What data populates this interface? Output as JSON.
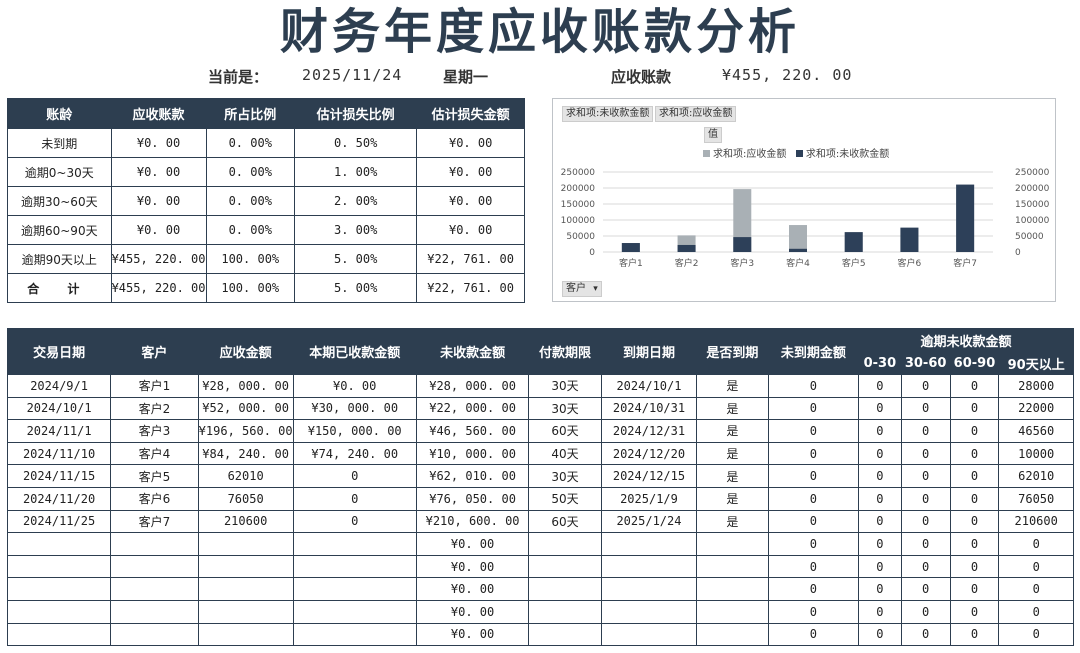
{
  "header": {
    "title": "财务年度应收账款分析",
    "current_label": "当前是：",
    "date": "2025/11/24",
    "weekday": "星期一",
    "ar_label": "应收账款",
    "ar_total": "¥455, 220. 00"
  },
  "aging_table": {
    "headers": [
      "账龄",
      "应收账款",
      "所占比例",
      "估计损失比例",
      "估计损失金额"
    ],
    "rows": [
      [
        "未到期",
        "¥0. 00",
        "0. 00%",
        "0. 50%",
        "¥0. 00"
      ],
      [
        "逾期0~30天",
        "¥0. 00",
        "0. 00%",
        "1. 00%",
        "¥0. 00"
      ],
      [
        "逾期30~60天",
        "¥0. 00",
        "0. 00%",
        "2. 00%",
        "¥0. 00"
      ],
      [
        "逾期60~90天",
        "¥0. 00",
        "0. 00%",
        "3. 00%",
        "¥0. 00"
      ],
      [
        "逾期90天以上",
        "¥455, 220. 00",
        "100. 00%",
        "5. 00%",
        "¥22, 761. 00"
      ],
      [
        "合 计",
        "¥455, 220. 00",
        "100. 00%",
        "5. 00%",
        "¥22, 761. 00"
      ]
    ]
  },
  "pivot_chart": {
    "field_buttons": [
      "求和项:未收款金额",
      "求和项:应收金额"
    ],
    "values_button": "值",
    "category_button": "客户",
    "legend": [
      "求和项:应收金额",
      "求和项:未收款金额"
    ],
    "colors": {
      "receivable": "#a9b0b5",
      "unpaid": "#2d4059",
      "grid": "#d9d9d9"
    },
    "y_ticks_left": [
      "250000",
      "200000",
      "150000",
      "100000",
      "50000",
      "0"
    ],
    "y_ticks_right": [
      "250000",
      "200000",
      "150000",
      "100000",
      "50000",
      "0"
    ]
  },
  "chart_data": {
    "type": "bar",
    "categories": [
      "客户1",
      "客户2",
      "客户3",
      "客户4",
      "客户5",
      "客户6",
      "客户7"
    ],
    "series": [
      {
        "name": "求和项:应收金额",
        "values": [
          28000,
          52000,
          196560,
          84240,
          62010,
          76050,
          210600
        ]
      },
      {
        "name": "求和项:未收款金额",
        "values": [
          28000,
          22000,
          46560,
          10000,
          62010,
          76050,
          210600
        ]
      }
    ],
    "ylim": [
      0,
      250000
    ],
    "y2lim": [
      0,
      250000
    ],
    "legend_position": "top",
    "grid": true
  },
  "detail_table": {
    "headers": [
      "交易日期",
      "客户",
      "应收金额",
      "本期已收款金额",
      "未收款金额",
      "付款期限",
      "到期日期",
      "是否到期",
      "未到期金额"
    ],
    "overdue_group": "逾期未收款金额",
    "overdue_headers": [
      "0-30",
      "30-60",
      "60-90",
      "90天以上"
    ],
    "rows": [
      [
        "2024/9/1",
        "客户1",
        "¥28, 000. 00",
        "¥0. 00",
        "¥28, 000. 00",
        "30天",
        "2024/10/1",
        "是",
        "0",
        "0",
        "0",
        "0",
        "28000"
      ],
      [
        "2024/10/1",
        "客户2",
        "¥52, 000. 00",
        "¥30, 000. 00",
        "¥22, 000. 00",
        "30天",
        "2024/10/31",
        "是",
        "0",
        "0",
        "0",
        "0",
        "22000"
      ],
      [
        "2024/11/1",
        "客户3",
        "¥196, 560. 00",
        "¥150, 000. 00",
        "¥46, 560. 00",
        "60天",
        "2024/12/31",
        "是",
        "0",
        "0",
        "0",
        "0",
        "46560"
      ],
      [
        "2024/11/10",
        "客户4",
        "¥84, 240. 00",
        "¥74, 240. 00",
        "¥10, 000. 00",
        "40天",
        "2024/12/20",
        "是",
        "0",
        "0",
        "0",
        "0",
        "10000"
      ],
      [
        "2024/11/15",
        "客户5",
        "62010",
        "0",
        "¥62, 010. 00",
        "30天",
        "2024/12/15",
        "是",
        "0",
        "0",
        "0",
        "0",
        "62010"
      ],
      [
        "2024/11/20",
        "客户6",
        "76050",
        "0",
        "¥76, 050. 00",
        "50天",
        "2025/1/9",
        "是",
        "0",
        "0",
        "0",
        "0",
        "76050"
      ],
      [
        "2024/11/25",
        "客户7",
        "210600",
        "0",
        "¥210, 600. 00",
        "60天",
        "2025/1/24",
        "是",
        "0",
        "0",
        "0",
        "0",
        "210600"
      ],
      [
        "",
        "",
        "",
        "",
        "¥0. 00",
        "",
        "",
        "",
        "0",
        "0",
        "0",
        "0",
        "0"
      ],
      [
        "",
        "",
        "",
        "",
        "¥0. 00",
        "",
        "",
        "",
        "0",
        "0",
        "0",
        "0",
        "0"
      ],
      [
        "",
        "",
        "",
        "",
        "¥0. 00",
        "",
        "",
        "",
        "0",
        "0",
        "0",
        "0",
        "0"
      ],
      [
        "",
        "",
        "",
        "",
        "¥0. 00",
        "",
        "",
        "",
        "0",
        "0",
        "0",
        "0",
        "0"
      ],
      [
        "",
        "",
        "",
        "",
        "¥0. 00",
        "",
        "",
        "",
        "0",
        "0",
        "0",
        "0",
        "0"
      ]
    ]
  }
}
